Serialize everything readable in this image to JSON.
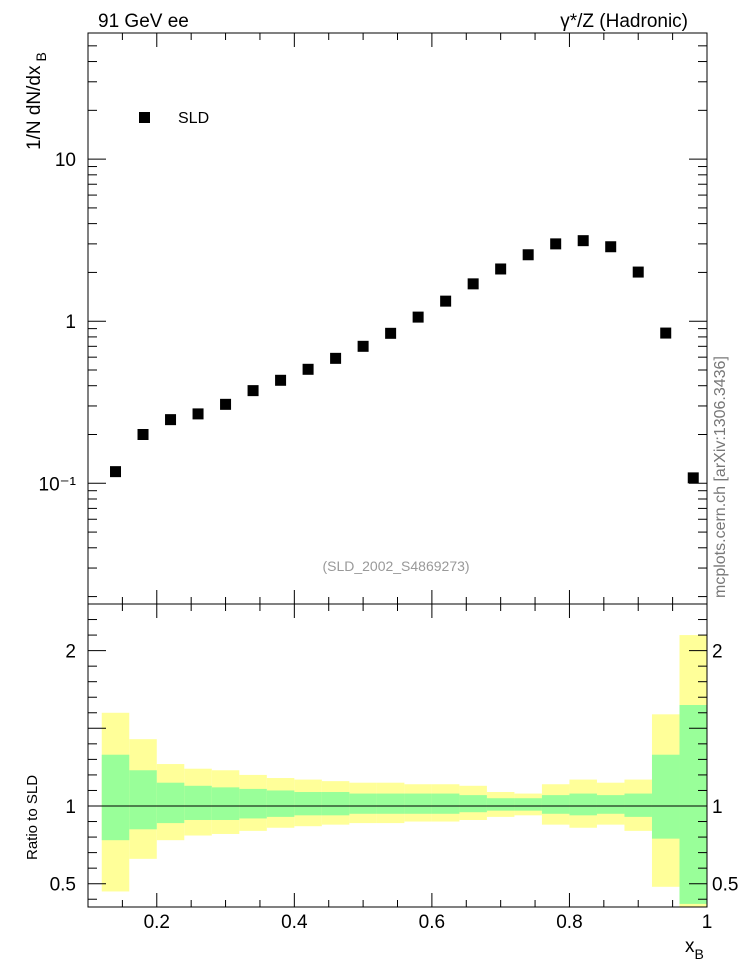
{
  "header": {
    "left_label": "91 GeV ee",
    "right_label": "γ*/Z (Hadronic)"
  },
  "side_label": "mcplots.cern.ch [arXiv:1306.3436]",
  "chart_data": [
    {
      "type": "scatter",
      "panel": "main",
      "ylabel": "1/N dN/dx",
      "ylabel_sub": "B",
      "yscale": "log",
      "ylim": [
        0.018,
        60
      ],
      "xlim": [
        0.1,
        1.0
      ],
      "ytick_labels": [
        "10⁻¹",
        "1",
        "10"
      ],
      "legend": {
        "position": "top-left",
        "entries": [
          "SLD"
        ]
      },
      "annotation": "(SLD_2002_S4869273)",
      "series": [
        {
          "name": "SLD",
          "marker": "square",
          "color": "#000000",
          "x": [
            0.14,
            0.18,
            0.22,
            0.26,
            0.3,
            0.34,
            0.38,
            0.42,
            0.46,
            0.5,
            0.54,
            0.58,
            0.62,
            0.66,
            0.7,
            0.74,
            0.78,
            0.82,
            0.86,
            0.9,
            0.94,
            0.98
          ],
          "y": [
            0.118,
            0.2,
            0.247,
            0.268,
            0.307,
            0.373,
            0.432,
            0.505,
            0.59,
            0.7,
            0.842,
            1.06,
            1.33,
            1.7,
            2.1,
            2.57,
            3.0,
            3.14,
            2.88,
            2.01,
            0.845,
            0.108
          ]
        }
      ]
    },
    {
      "type": "area",
      "panel": "ratio",
      "xlabel": "x",
      "xlabel_sub": "B",
      "ylabel": "Ratio to SLD",
      "ylim": [
        0.35,
        2.3
      ],
      "xlim": [
        0.1,
        1.0
      ],
      "xtick_labels": [
        "0.2",
        "0.4",
        "0.6",
        "0.8",
        "1"
      ],
      "ytick_labels": [
        "0.5",
        "1",
        "2"
      ],
      "reference_line": 1.0,
      "bins": [
        0.12,
        0.16,
        0.2,
        0.24,
        0.28,
        0.32,
        0.36,
        0.4,
        0.44,
        0.48,
        0.52,
        0.56,
        0.6,
        0.64,
        0.68,
        0.72,
        0.76,
        0.8,
        0.84,
        0.88,
        0.92,
        0.96,
        1.0
      ],
      "bands": [
        {
          "name": "yellow",
          "color": "#ffff99",
          "lower": [
            0.45,
            0.66,
            0.78,
            0.81,
            0.82,
            0.84,
            0.86,
            0.87,
            0.88,
            0.89,
            0.89,
            0.9,
            0.9,
            0.91,
            0.93,
            0.94,
            0.88,
            0.86,
            0.88,
            0.84,
            0.48,
            0.35
          ],
          "upper": [
            1.6,
            1.43,
            1.27,
            1.24,
            1.23,
            1.2,
            1.18,
            1.17,
            1.16,
            1.15,
            1.15,
            1.14,
            1.14,
            1.13,
            1.09,
            1.08,
            1.14,
            1.17,
            1.15,
            1.17,
            1.59,
            2.1
          ]
        },
        {
          "name": "green",
          "color": "#99ff99",
          "lower": [
            0.78,
            0.85,
            0.89,
            0.91,
            0.91,
            0.92,
            0.93,
            0.94,
            0.94,
            0.95,
            0.95,
            0.95,
            0.95,
            0.96,
            0.97,
            0.97,
            0.95,
            0.94,
            0.95,
            0.93,
            0.79,
            0.37
          ],
          "upper": [
            1.33,
            1.23,
            1.15,
            1.13,
            1.12,
            1.11,
            1.1,
            1.09,
            1.09,
            1.08,
            1.08,
            1.08,
            1.08,
            1.07,
            1.05,
            1.05,
            1.07,
            1.08,
            1.07,
            1.08,
            1.33,
            1.65
          ]
        }
      ]
    }
  ]
}
